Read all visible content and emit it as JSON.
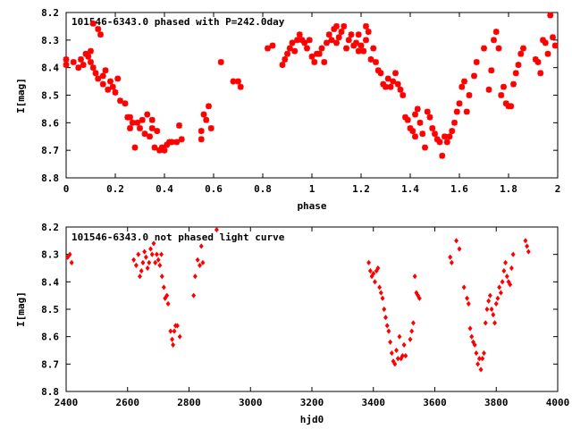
{
  "chart_data": [
    {
      "type": "scatter",
      "title": "101546-6343.0 phased with P=242.0day",
      "xlabel": "phase",
      "ylabel": "I[mag]",
      "xlim": [
        0,
        2
      ],
      "ylim": [
        8.8,
        8.2
      ],
      "y_inverted": true,
      "xticks": [
        "0",
        "0.2",
        "0.4",
        "0.6",
        "0.8",
        "1",
        "1.2",
        "1.4",
        "1.6",
        "1.8",
        "2"
      ],
      "yticks": [
        "8.2",
        "8.3",
        "8.4",
        "8.5",
        "8.6",
        "8.7",
        "8.8"
      ],
      "grid": false,
      "marker_color": "#ff0000",
      "marker": "star",
      "points": [
        [
          0.0,
          8.37
        ],
        [
          0.0,
          8.39
        ],
        [
          0.03,
          8.38
        ],
        [
          0.05,
          8.4
        ],
        [
          0.06,
          8.37
        ],
        [
          0.07,
          8.39
        ],
        [
          0.08,
          8.35
        ],
        [
          0.09,
          8.36
        ],
        [
          0.1,
          8.34
        ],
        [
          0.1,
          8.38
        ],
        [
          0.11,
          8.4
        ],
        [
          0.11,
          8.24
        ],
        [
          0.12,
          8.42
        ],
        [
          0.13,
          8.44
        ],
        [
          0.13,
          8.26
        ],
        [
          0.14,
          8.28
        ],
        [
          0.15,
          8.46
        ],
        [
          0.15,
          8.43
        ],
        [
          0.16,
          8.41
        ],
        [
          0.17,
          8.48
        ],
        [
          0.18,
          8.45
        ],
        [
          0.19,
          8.47
        ],
        [
          0.2,
          8.49
        ],
        [
          0.21,
          8.44
        ],
        [
          0.22,
          8.52
        ],
        [
          0.24,
          8.53
        ],
        [
          0.25,
          8.58
        ],
        [
          0.26,
          8.62
        ],
        [
          0.26,
          8.58
        ],
        [
          0.27,
          8.6
        ],
        [
          0.28,
          8.69
        ],
        [
          0.29,
          8.6
        ],
        [
          0.3,
          8.62
        ],
        [
          0.31,
          8.59
        ],
        [
          0.32,
          8.64
        ],
        [
          0.33,
          8.57
        ],
        [
          0.34,
          8.65
        ],
        [
          0.35,
          8.62
        ],
        [
          0.35,
          8.59
        ],
        [
          0.36,
          8.69
        ],
        [
          0.37,
          8.63
        ],
        [
          0.38,
          8.7
        ],
        [
          0.39,
          8.69
        ],
        [
          0.4,
          8.7
        ],
        [
          0.41,
          8.68
        ],
        [
          0.42,
          8.67
        ],
        [
          0.43,
          8.67
        ],
        [
          0.45,
          8.67
        ],
        [
          0.46,
          8.61
        ],
        [
          0.47,
          8.66
        ],
        [
          0.55,
          8.66
        ],
        [
          0.55,
          8.63
        ],
        [
          0.56,
          8.57
        ],
        [
          0.57,
          8.59
        ],
        [
          0.58,
          8.54
        ],
        [
          0.59,
          8.62
        ],
        [
          0.63,
          8.38
        ],
        [
          0.68,
          8.45
        ],
        [
          0.7,
          8.45
        ],
        [
          0.71,
          8.47
        ],
        [
          0.82,
          8.33
        ],
        [
          0.84,
          8.32
        ],
        [
          0.88,
          8.39
        ],
        [
          0.89,
          8.37
        ],
        [
          0.9,
          8.35
        ],
        [
          0.91,
          8.33
        ],
        [
          0.92,
          8.31
        ],
        [
          0.93,
          8.34
        ],
        [
          0.94,
          8.3
        ],
        [
          0.95,
          8.28
        ],
        [
          0.96,
          8.3
        ],
        [
          0.97,
          8.31
        ],
        [
          0.98,
          8.33
        ],
        [
          0.99,
          8.3
        ],
        [
          1.0,
          8.36
        ],
        [
          1.01,
          8.38
        ],
        [
          1.02,
          8.35
        ],
        [
          1.03,
          8.35
        ],
        [
          1.04,
          8.33
        ],
        [
          1.05,
          8.38
        ],
        [
          1.06,
          8.31
        ],
        [
          1.07,
          8.28
        ],
        [
          1.08,
          8.3
        ],
        [
          1.09,
          8.26
        ],
        [
          1.1,
          8.31
        ],
        [
          1.1,
          8.25
        ],
        [
          1.11,
          8.29
        ],
        [
          1.12,
          8.27
        ],
        [
          1.13,
          8.25
        ],
        [
          1.14,
          8.33
        ],
        [
          1.15,
          8.3
        ],
        [
          1.16,
          8.28
        ],
        [
          1.17,
          8.32
        ],
        [
          1.18,
          8.31
        ],
        [
          1.19,
          8.34
        ],
        [
          1.19,
          8.28
        ],
        [
          1.2,
          8.32
        ],
        [
          1.21,
          8.34
        ],
        [
          1.22,
          8.3
        ],
        [
          1.22,
          8.25
        ],
        [
          1.23,
          8.27
        ],
        [
          1.24,
          8.37
        ],
        [
          1.25,
          8.33
        ],
        [
          1.26,
          8.38
        ],
        [
          1.27,
          8.41
        ],
        [
          1.28,
          8.42
        ],
        [
          1.29,
          8.46
        ],
        [
          1.3,
          8.47
        ],
        [
          1.31,
          8.44
        ],
        [
          1.32,
          8.47
        ],
        [
          1.33,
          8.45
        ],
        [
          1.34,
          8.42
        ],
        [
          1.35,
          8.46
        ],
        [
          1.36,
          8.48
        ],
        [
          1.37,
          8.5
        ],
        [
          1.38,
          8.58
        ],
        [
          1.39,
          8.59
        ],
        [
          1.4,
          8.62
        ],
        [
          1.41,
          8.63
        ],
        [
          1.42,
          8.57
        ],
        [
          1.42,
          8.65
        ],
        [
          1.43,
          8.55
        ],
        [
          1.44,
          8.6
        ],
        [
          1.45,
          8.64
        ],
        [
          1.46,
          8.69
        ],
        [
          1.47,
          8.56
        ],
        [
          1.48,
          8.58
        ],
        [
          1.49,
          8.62
        ],
        [
          1.5,
          8.64
        ],
        [
          1.51,
          8.66
        ],
        [
          1.52,
          8.67
        ],
        [
          1.53,
          8.72
        ],
        [
          1.54,
          8.65
        ],
        [
          1.55,
          8.67
        ],
        [
          1.56,
          8.65
        ],
        [
          1.57,
          8.63
        ],
        [
          1.58,
          8.6
        ],
        [
          1.59,
          8.56
        ],
        [
          1.6,
          8.53
        ],
        [
          1.61,
          8.47
        ],
        [
          1.62,
          8.45
        ],
        [
          1.63,
          8.56
        ],
        [
          1.64,
          8.5
        ],
        [
          1.66,
          8.43
        ],
        [
          1.67,
          8.38
        ],
        [
          1.7,
          8.33
        ],
        [
          1.72,
          8.48
        ],
        [
          1.73,
          8.41
        ],
        [
          1.74,
          8.3
        ],
        [
          1.75,
          8.27
        ],
        [
          1.76,
          8.33
        ],
        [
          1.77,
          8.5
        ],
        [
          1.78,
          8.47
        ],
        [
          1.79,
          8.53
        ],
        [
          1.8,
          8.54
        ],
        [
          1.81,
          8.54
        ],
        [
          1.82,
          8.46
        ],
        [
          1.83,
          8.42
        ],
        [
          1.84,
          8.39
        ],
        [
          1.85,
          8.35
        ],
        [
          1.86,
          8.33
        ],
        [
          1.91,
          8.37
        ],
        [
          1.92,
          8.38
        ],
        [
          1.93,
          8.42
        ],
        [
          1.94,
          8.3
        ],
        [
          1.95,
          8.31
        ],
        [
          1.96,
          8.35
        ],
        [
          1.97,
          8.21
        ],
        [
          1.98,
          8.29
        ],
        [
          1.99,
          8.32
        ]
      ]
    },
    {
      "type": "scatter",
      "title": "101546-6343.0 not phased light curve",
      "xlabel": "hjd0",
      "ylabel": "I[mag]",
      "xlim": [
        2400,
        4000
      ],
      "ylim": [
        8.8,
        8.2
      ],
      "y_inverted": true,
      "xticks": [
        "2400",
        "2600",
        "2800",
        "3000",
        "3200",
        "3400",
        "3600",
        "3800",
        "4000"
      ],
      "yticks": [
        "8.2",
        "8.3",
        "8.4",
        "8.5",
        "8.6",
        "8.7",
        "8.8"
      ],
      "grid": false,
      "marker_color": "#ff0000",
      "marker": "diamond",
      "points": [
        [
          2405,
          8.31
        ],
        [
          2412,
          8.3
        ],
        [
          2418,
          8.33
        ],
        [
          2620,
          8.32
        ],
        [
          2628,
          8.34
        ],
        [
          2635,
          8.3
        ],
        [
          2640,
          8.38
        ],
        [
          2645,
          8.36
        ],
        [
          2650,
          8.33
        ],
        [
          2655,
          8.29
        ],
        [
          2660,
          8.31
        ],
        [
          2665,
          8.35
        ],
        [
          2670,
          8.33
        ],
        [
          2675,
          8.28
        ],
        [
          2680,
          8.3
        ],
        [
          2685,
          8.26
        ],
        [
          2690,
          8.33
        ],
        [
          2695,
          8.3
        ],
        [
          2700,
          8.32
        ],
        [
          2705,
          8.34
        ],
        [
          2710,
          8.3
        ],
        [
          2712,
          8.38
        ],
        [
          2718,
          8.42
        ],
        [
          2722,
          8.46
        ],
        [
          2728,
          8.45
        ],
        [
          2732,
          8.48
        ],
        [
          2740,
          8.58
        ],
        [
          2745,
          8.61
        ],
        [
          2748,
          8.63
        ],
        [
          2752,
          8.58
        ],
        [
          2756,
          8.56
        ],
        [
          2762,
          8.56
        ],
        [
          2770,
          8.6
        ],
        [
          2815,
          8.45
        ],
        [
          2820,
          8.38
        ],
        [
          2828,
          8.32
        ],
        [
          2835,
          8.34
        ],
        [
          2840,
          8.27
        ],
        [
          2845,
          8.33
        ],
        [
          2890,
          8.21
        ],
        [
          3385,
          8.33
        ],
        [
          3390,
          8.36
        ],
        [
          3395,
          8.38
        ],
        [
          3400,
          8.37
        ],
        [
          3405,
          8.4
        ],
        [
          3410,
          8.36
        ],
        [
          3415,
          8.35
        ],
        [
          3420,
          8.42
        ],
        [
          3425,
          8.44
        ],
        [
          3430,
          8.46
        ],
        [
          3435,
          8.5
        ],
        [
          3440,
          8.53
        ],
        [
          3445,
          8.56
        ],
        [
          3450,
          8.58
        ],
        [
          3455,
          8.62
        ],
        [
          3460,
          8.66
        ],
        [
          3465,
          8.69
        ],
        [
          3470,
          8.7
        ],
        [
          3475,
          8.65
        ],
        [
          3480,
          8.68
        ],
        [
          3485,
          8.6
        ],
        [
          3490,
          8.68
        ],
        [
          3495,
          8.67
        ],
        [
          3500,
          8.63
        ],
        [
          3505,
          8.67
        ],
        [
          3520,
          8.61
        ],
        [
          3525,
          8.58
        ],
        [
          3530,
          8.55
        ],
        [
          3535,
          8.38
        ],
        [
          3540,
          8.44
        ],
        [
          3545,
          8.45
        ],
        [
          3550,
          8.46
        ],
        [
          3650,
          8.31
        ],
        [
          3655,
          8.33
        ],
        [
          3670,
          8.25
        ],
        [
          3680,
          8.28
        ],
        [
          3695,
          8.42
        ],
        [
          3705,
          8.46
        ],
        [
          3710,
          8.48
        ],
        [
          3715,
          8.57
        ],
        [
          3720,
          8.6
        ],
        [
          3725,
          8.62
        ],
        [
          3730,
          8.63
        ],
        [
          3735,
          8.66
        ],
        [
          3740,
          8.7
        ],
        [
          3745,
          8.68
        ],
        [
          3750,
          8.72
        ],
        [
          3755,
          8.68
        ],
        [
          3760,
          8.66
        ],
        [
          3765,
          8.55
        ],
        [
          3770,
          8.5
        ],
        [
          3775,
          8.47
        ],
        [
          3780,
          8.45
        ],
        [
          3785,
          8.5
        ],
        [
          3790,
          8.52
        ],
        [
          3795,
          8.55
        ],
        [
          3800,
          8.48
        ],
        [
          3805,
          8.46
        ],
        [
          3810,
          8.42
        ],
        [
          3815,
          8.44
        ],
        [
          3820,
          8.4
        ],
        [
          3825,
          8.36
        ],
        [
          3830,
          8.33
        ],
        [
          3835,
          8.38
        ],
        [
          3840,
          8.4
        ],
        [
          3845,
          8.41
        ],
        [
          3850,
          8.35
        ],
        [
          3855,
          8.3
        ],
        [
          3895,
          8.25
        ],
        [
          3900,
          8.27
        ],
        [
          3905,
          8.29
        ]
      ]
    }
  ]
}
